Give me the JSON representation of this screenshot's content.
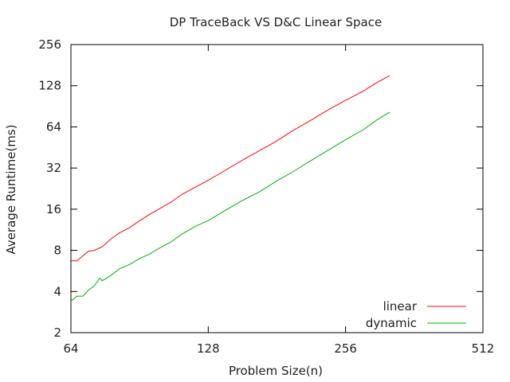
{
  "chart_data": {
    "type": "line",
    "title": "DP TraceBack VS D&C Linear Space",
    "xlabel": "Problem Size(n)",
    "ylabel": "Average Runtime(ms)",
    "x_scale": "log2",
    "y_scale": "log2",
    "xlim": [
      64,
      512
    ],
    "ylim": [
      2,
      256
    ],
    "x_ticks": [
      64,
      128,
      256,
      512
    ],
    "x_tick_labels": [
      "64",
      "128",
      "256",
      "512"
    ],
    "y_ticks": [
      2,
      4,
      8,
      16,
      32,
      64,
      128,
      256
    ],
    "y_tick_labels": [
      "2",
      "4",
      "8",
      "16",
      "32",
      "64",
      "128",
      "256"
    ],
    "grid": false,
    "legend_position": "bottom-right",
    "series": [
      {
        "name": "linear",
        "color": "#ff0000",
        "x": [
          64,
          66,
          68,
          70,
          72,
          75,
          78,
          82,
          86,
          90,
          95,
          100,
          106,
          112,
          120,
          128,
          140,
          152,
          166,
          180,
          196,
          214,
          234,
          256,
          280,
          300,
          320
        ],
        "y": [
          6.7,
          6.7,
          7.3,
          7.9,
          8.0,
          8.5,
          9.6,
          10.8,
          11.7,
          13.0,
          14.6,
          16.1,
          18.0,
          20.5,
          23.2,
          26.0,
          31.0,
          36.5,
          43.0,
          50.0,
          60.0,
          71.0,
          85.0,
          100.0,
          117.0,
          135.0,
          152.0
        ]
      },
      {
        "name": "dynamic",
        "color": "#00b000",
        "x": [
          64,
          66,
          68,
          70,
          72,
          74,
          75,
          78,
          82,
          86,
          90,
          95,
          100,
          106,
          112,
          120,
          128,
          140,
          152,
          166,
          180,
          196,
          214,
          234,
          256,
          280,
          300,
          320
        ],
        "y": [
          3.4,
          3.7,
          3.7,
          4.1,
          4.4,
          5.0,
          4.8,
          5.2,
          5.9,
          6.3,
          6.9,
          7.5,
          8.3,
          9.2,
          10.5,
          12.0,
          13.2,
          15.8,
          18.5,
          21.5,
          25.5,
          30.0,
          36.0,
          43.0,
          51.5,
          61.0,
          72.0,
          82.0
        ]
      }
    ]
  }
}
